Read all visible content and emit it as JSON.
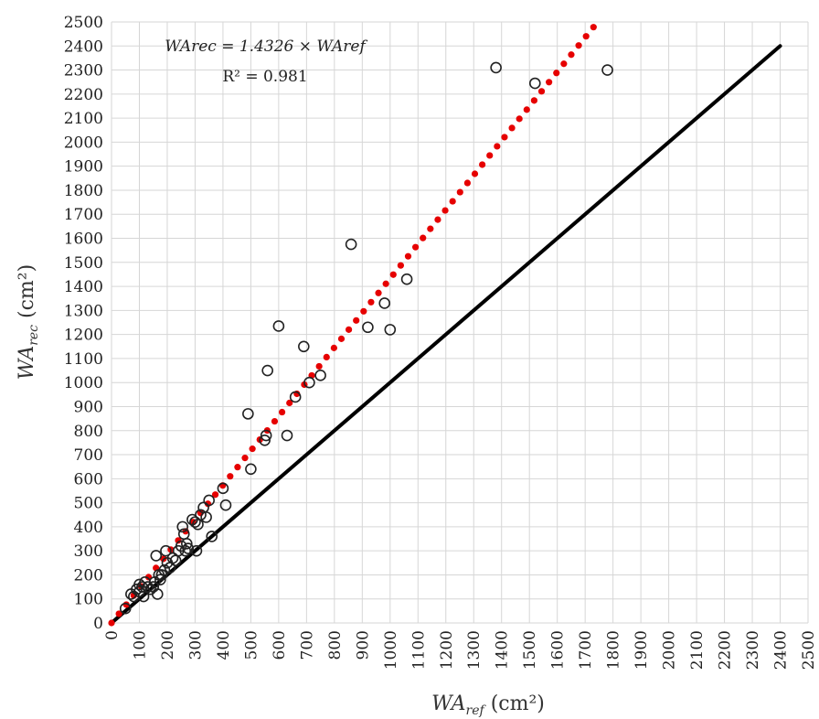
{
  "chart_data": {
    "type": "scatter",
    "xlim": [
      0,
      2500
    ],
    "ylim": [
      0,
      2500
    ],
    "xticks": [
      0,
      100,
      200,
      300,
      400,
      500,
      600,
      700,
      800,
      900,
      1000,
      1100,
      1200,
      1300,
      1400,
      1500,
      1600,
      1700,
      1800,
      1900,
      2000,
      2100,
      2200,
      2300,
      2400,
      2500
    ],
    "yticks": [
      0,
      100,
      200,
      300,
      400,
      500,
      600,
      700,
      800,
      900,
      1000,
      1100,
      1200,
      1300,
      1400,
      1500,
      1600,
      1700,
      1800,
      1900,
      2000,
      2100,
      2200,
      2300,
      2400,
      2500
    ],
    "grid": true,
    "xlabel_main": "WA",
    "xlabel_sub": "ref",
    "xlabel_unit": " (cm²)",
    "ylabel_main": "WA",
    "ylabel_sub": "rec",
    "ylabel_unit": " (cm²)",
    "equation": "WArec = 1.4326 × WAref",
    "r_squared": "R² = 0.981",
    "fit_line": {
      "slope": 1.4326,
      "x_range": [
        0,
        1730
      ],
      "color": "#e60000",
      "style": "dotted"
    },
    "identity_line": {
      "slope": 1,
      "x_range": [
        0,
        2400
      ],
      "color": "#000000",
      "style": "solid"
    },
    "series": [
      {
        "marker": "open-circle",
        "points": [
          [
            50,
            60
          ],
          [
            70,
            120
          ],
          [
            80,
            110
          ],
          [
            90,
            140
          ],
          [
            100,
            160
          ],
          [
            100,
            130
          ],
          [
            110,
            150
          ],
          [
            115,
            110
          ],
          [
            120,
            170
          ],
          [
            130,
            150
          ],
          [
            140,
            140
          ],
          [
            150,
            150
          ],
          [
            155,
            170
          ],
          [
            160,
            280
          ],
          [
            165,
            120
          ],
          [
            170,
            200
          ],
          [
            175,
            180
          ],
          [
            180,
            200
          ],
          [
            190,
            220
          ],
          [
            195,
            300
          ],
          [
            200,
            250
          ],
          [
            210,
            230
          ],
          [
            220,
            270
          ],
          [
            230,
            260
          ],
          [
            240,
            300
          ],
          [
            250,
            320
          ],
          [
            255,
            400
          ],
          [
            260,
            370
          ],
          [
            265,
            300
          ],
          [
            270,
            330
          ],
          [
            275,
            310
          ],
          [
            290,
            430
          ],
          [
            300,
            420
          ],
          [
            305,
            300
          ],
          [
            310,
            410
          ],
          [
            320,
            450
          ],
          [
            330,
            480
          ],
          [
            340,
            440
          ],
          [
            350,
            510
          ],
          [
            360,
            360
          ],
          [
            400,
            560
          ],
          [
            410,
            490
          ],
          [
            490,
            870
          ],
          [
            500,
            640
          ],
          [
            550,
            760
          ],
          [
            555,
            780
          ],
          [
            560,
            1050
          ],
          [
            600,
            1235
          ],
          [
            630,
            780
          ],
          [
            660,
            940
          ],
          [
            690,
            1150
          ],
          [
            710,
            1000
          ],
          [
            750,
            1030
          ],
          [
            860,
            1575
          ],
          [
            920,
            1230
          ],
          [
            980,
            1330
          ],
          [
            1000,
            1220
          ],
          [
            1060,
            1430
          ],
          [
            1380,
            2310
          ],
          [
            1520,
            2245
          ],
          [
            1780,
            2300
          ]
        ]
      }
    ]
  }
}
